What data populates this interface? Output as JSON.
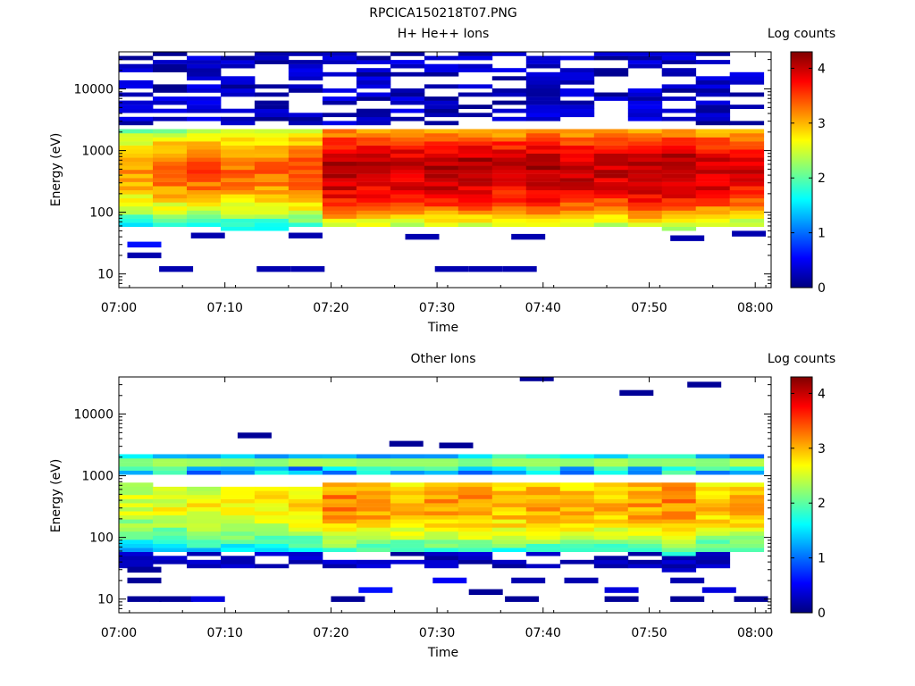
{
  "figure_title": "RPCICA150218T07.PNG",
  "colors": {
    "background": "#ffffff",
    "axes": "#000000",
    "colormap": [
      "#00007f",
      "#0000ff",
      "#007fff",
      "#00ffff",
      "#7fff7f",
      "#ffff00",
      "#ff7f00",
      "#ff0000",
      "#7f0000"
    ]
  },
  "chart_data": [
    {
      "type": "heatmap",
      "title": "H+ He++ Ions",
      "xlabel": "Time",
      "ylabel": "Energy (eV)",
      "x_ticks": [
        "07:00",
        "07:10",
        "07:20",
        "07:30",
        "07:40",
        "07:50",
        "08:00"
      ],
      "y_scale": "log",
      "y_ticks": [
        "10",
        "100",
        "1000",
        "10000"
      ],
      "ylim": [
        6,
        40000
      ],
      "colorbar": {
        "label": "Log counts",
        "range": [
          0,
          4.3
        ],
        "ticks": [
          "0",
          "1",
          "2",
          "3",
          "4"
        ]
      },
      "time_bins_minutes": [
        0,
        3.2,
        6.4,
        9.6,
        12.8,
        16,
        19.2,
        22.4,
        25.6,
        28.8,
        32,
        35.2,
        38.4,
        41.6,
        44.8,
        48,
        51.2,
        54.4,
        57.6
      ],
      "time_bin_width_minutes": 3.2,
      "peak_log_counts": [
        3.1,
        3.3,
        3.4,
        3.3,
        3.3,
        3.4,
        4.1,
        4.0,
        4.0,
        4.1,
        4.1,
        4.0,
        4.1,
        4.0,
        4.0,
        4.1,
        4.1,
        4.0,
        3.9
      ],
      "band_low_eV": [
        60,
        60,
        60,
        50,
        50,
        60,
        60,
        55,
        55,
        60,
        60,
        55,
        60,
        60,
        55,
        60,
        50,
        60,
        60
      ],
      "band_high_eV": [
        2200,
        2200,
        2200,
        2100,
        2100,
        2200,
        2300,
        2200,
        2200,
        2200,
        2300,
        2200,
        2200,
        2200,
        2200,
        2200,
        2200,
        2200,
        2200
      ],
      "peak_energy_eV": 500,
      "sparse_high_eV": [
        2500,
        40000
      ],
      "sparse_low_points": [
        {
          "t": 0.8,
          "eV": 30,
          "v": 0.6
        },
        {
          "t": 0.8,
          "eV": 20,
          "v": 0.2
        },
        {
          "t": 3.8,
          "eV": 12,
          "v": 0.2
        },
        {
          "t": 13,
          "eV": 12,
          "v": 0.2
        },
        {
          "t": 16.2,
          "eV": 12,
          "v": 0.2
        },
        {
          "t": 29.8,
          "eV": 12,
          "v": 0.2
        },
        {
          "t": 33,
          "eV": 12,
          "v": 0.2
        },
        {
          "t": 36.2,
          "eV": 12,
          "v": 0.2
        },
        {
          "t": 6.8,
          "eV": 42,
          "v": 0.2
        },
        {
          "t": 16,
          "eV": 42,
          "v": 0.2
        },
        {
          "t": 27,
          "eV": 40,
          "v": 0.2
        },
        {
          "t": 37,
          "eV": 40,
          "v": 0.2
        },
        {
          "t": 52,
          "eV": 38,
          "v": 0.2
        },
        {
          "t": 57.8,
          "eV": 45,
          "v": 0.2
        }
      ]
    },
    {
      "type": "heatmap",
      "title": "Other Ions",
      "xlabel": "Time",
      "ylabel": "Energy (eV)",
      "x_ticks": [
        "07:00",
        "07:10",
        "07:20",
        "07:30",
        "07:40",
        "07:50",
        "08:00"
      ],
      "y_scale": "log",
      "y_ticks": [
        "10",
        "100",
        "1000",
        "10000"
      ],
      "ylim": [
        6,
        40000
      ],
      "colorbar": {
        "label": "Log counts",
        "range": [
          0,
          4.3
        ],
        "ticks": [
          "0",
          "1",
          "2",
          "3",
          "4"
        ]
      },
      "time_bins_minutes": [
        0,
        3.2,
        6.4,
        9.6,
        12.8,
        16,
        19.2,
        22.4,
        25.6,
        28.8,
        32,
        35.2,
        38.4,
        41.6,
        44.8,
        48,
        51.2,
        54.4,
        57.6
      ],
      "time_bin_width_minutes": 3.2,
      "peak_log_counts": [
        2.5,
        2.6,
        2.7,
        2.7,
        2.7,
        2.8,
        3.2,
        3.1,
        3.0,
        3.1,
        3.1,
        3.0,
        3.1,
        3.0,
        3.0,
        3.1,
        3.2,
        3.0,
        3.0
      ],
      "band_low_eV": [
        55,
        60,
        60,
        60,
        55,
        60,
        60,
        60,
        60,
        60,
        60,
        60,
        55,
        60,
        60,
        60,
        50,
        60,
        60
      ],
      "band_high_eV": [
        750,
        700,
        700,
        700,
        700,
        700,
        720,
        720,
        720,
        720,
        720,
        720,
        720,
        720,
        720,
        720,
        720,
        720,
        720
      ],
      "second_band_eV": [
        1000,
        2100
      ],
      "sparse_high_eV": [
        2200,
        40000
      ],
      "sparse_low_points": [
        {
          "t": 0.8,
          "eV": 30,
          "v": 0.1
        },
        {
          "t": 0.8,
          "eV": 20,
          "v": 0.1
        },
        {
          "t": 0.8,
          "eV": 10,
          "v": 0.1
        },
        {
          "t": 3.8,
          "eV": 10,
          "v": 0.1
        },
        {
          "t": 6.8,
          "eV": 10,
          "v": 0.4
        },
        {
          "t": 20,
          "eV": 10,
          "v": 0.1
        },
        {
          "t": 22.6,
          "eV": 14,
          "v": 0.6
        },
        {
          "t": 29.6,
          "eV": 20,
          "v": 0.5
        },
        {
          "t": 33,
          "eV": 13,
          "v": 0.1
        },
        {
          "t": 36.4,
          "eV": 10,
          "v": 0.1
        },
        {
          "t": 45.8,
          "eV": 10,
          "v": 0.1
        },
        {
          "t": 45.8,
          "eV": 14,
          "v": 0.4
        },
        {
          "t": 52,
          "eV": 10,
          "v": 0.1
        },
        {
          "t": 55,
          "eV": 14,
          "v": 0.4
        },
        {
          "t": 58,
          "eV": 10,
          "v": 0.1
        },
        {
          "t": 37,
          "eV": 20,
          "v": 0.2
        },
        {
          "t": 42,
          "eV": 20,
          "v": 0.2
        },
        {
          "t": 52,
          "eV": 20,
          "v": 0.2
        },
        {
          "t": 25.5,
          "eV": 3300,
          "v": 0.1
        },
        {
          "t": 30.2,
          "eV": 3100,
          "v": 0.1
        },
        {
          "t": 37.8,
          "eV": 38000,
          "v": 0.1
        },
        {
          "t": 47.2,
          "eV": 22000,
          "v": 0.1
        },
        {
          "t": 53.6,
          "eV": 30000,
          "v": 0.1
        },
        {
          "t": 11.2,
          "eV": 4500,
          "v": 0.1
        }
      ]
    }
  ]
}
